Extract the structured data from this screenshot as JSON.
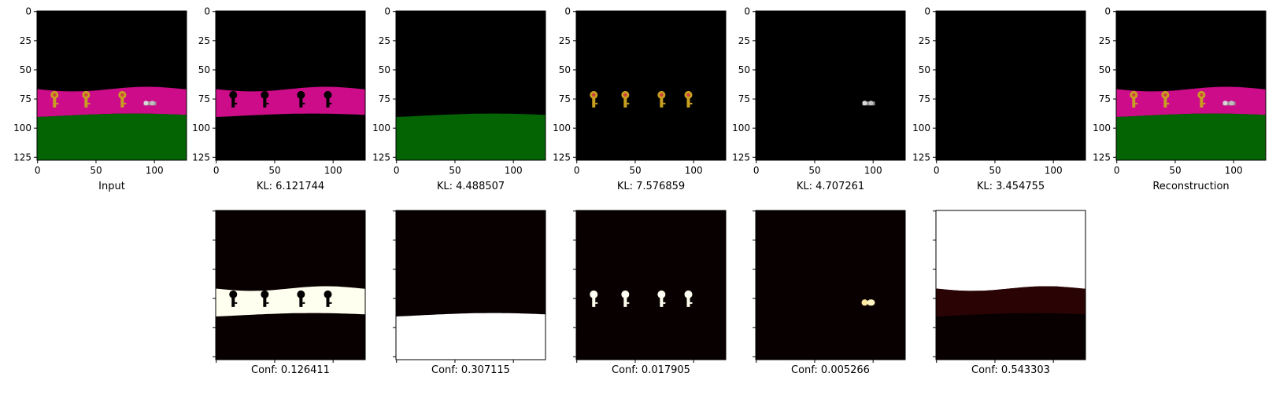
{
  "chart_data": [
    {
      "type": "heatmap",
      "panels_top": [
        {
          "id": "input",
          "caption": "Input",
          "show_y_ticks": true
        },
        {
          "id": "slot1",
          "caption": "KL: 6.121744",
          "show_y_ticks": true
        },
        {
          "id": "slot2",
          "caption": "KL: 4.488507",
          "show_y_ticks": true
        },
        {
          "id": "slot3",
          "caption": "KL: 7.576859",
          "show_y_ticks": true
        },
        {
          "id": "slot4",
          "caption": "KL: 4.707261",
          "show_y_ticks": true
        },
        {
          "id": "slot5",
          "caption": "KL: 3.454755",
          "show_y_ticks": true
        },
        {
          "id": "recon",
          "caption": "Reconstruction",
          "show_y_ticks": true
        }
      ],
      "panels_bottom": [
        {
          "id": "conf1",
          "caption": "Conf: 0.126411"
        },
        {
          "id": "conf2",
          "caption": "Conf: 0.307115"
        },
        {
          "id": "conf3",
          "caption": "Conf: 0.017905"
        },
        {
          "id": "conf4",
          "caption": "Conf: 0.005266"
        },
        {
          "id": "conf5",
          "caption": "Conf: 0.543303"
        }
      ],
      "x_ticks": [
        "0",
        "50",
        "100"
      ],
      "y_ticks": [
        "0",
        "25",
        "50",
        "75",
        "100",
        "125"
      ],
      "tick_values_x": [
        0,
        50,
        100
      ],
      "tick_values_y": [
        0,
        25,
        50,
        75,
        100,
        125
      ],
      "image_size": [
        128,
        128
      ]
    }
  ],
  "colors": {
    "sky": "#000000",
    "wall": "#cc0c88",
    "floor": "#046404",
    "key": "#c8a020",
    "key_red": "#d04040",
    "grey_key": "#9a9a9a",
    "conf_hot": "#fffff0",
    "conf_dark": "#080000"
  }
}
